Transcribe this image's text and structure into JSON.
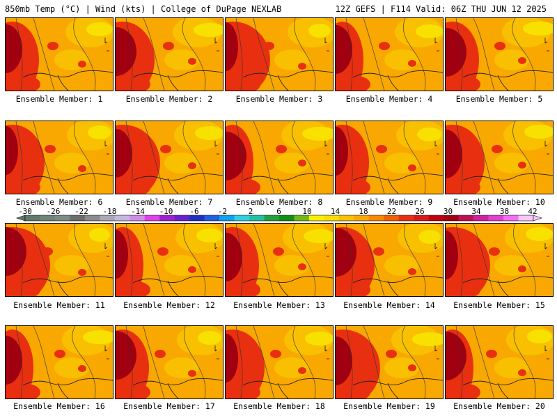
{
  "header": {
    "left": "850mb Temp (°C) | Wind (kts) | College of DuPage NEXLAB",
    "right": "12Z GEFS | F114 Valid: 06Z THU JUN 12 2025"
  },
  "panels": [
    {
      "label": "Ensemble Member: 1"
    },
    {
      "label": "Ensemble Member: 2"
    },
    {
      "label": "Ensemble Member: 3"
    },
    {
      "label": "Ensemble Member: 4"
    },
    {
      "label": "Ensemble Member: 5"
    },
    {
      "label": "Ensemble Member: 6"
    },
    {
      "label": "Ensemble Member: 7"
    },
    {
      "label": "Ensemble Member: 8"
    },
    {
      "label": "Ensemble Member: 9"
    },
    {
      "label": "Ensemble Member: 10"
    },
    {
      "label": "Ensemble Member: 11"
    },
    {
      "label": "Ensemble Member: 12"
    },
    {
      "label": "Ensemble Member: 13"
    },
    {
      "label": "Ensemble Member: 14"
    },
    {
      "label": "Ensemble Member: 15"
    },
    {
      "label": "Ensemble Member: 16"
    },
    {
      "label": "Ensemble Member: 17"
    },
    {
      "label": "Ensemble Member: 18"
    },
    {
      "label": "Ensemble Member: 19"
    },
    {
      "label": "Ensemble Member: 20"
    }
  ],
  "colorbar": {
    "labels": [
      "-30",
      "-26",
      "-22",
      "-18",
      "-14",
      "-10",
      "-6",
      "-2",
      "2",
      "6",
      "10",
      "14",
      "18",
      "22",
      "26",
      "30",
      "34",
      "38",
      "42"
    ],
    "colors": [
      "#5f7a6a",
      "#6e8478",
      "#7c8b82",
      "#6c6c6c",
      "#8a8a8a",
      "#a8a8b8",
      "#c4b6dc",
      "#d08ce8",
      "#e040e8",
      "#a020d0",
      "#6a20c8",
      "#2030c0",
      "#2060e0",
      "#10a0f0",
      "#30d0e0",
      "#20c0a0",
      "#20a040",
      "#109010",
      "#70b818",
      "#f8f000",
      "#f8e000",
      "#f8c000",
      "#f8a800",
      "#f88800",
      "#f06000",
      "#e83010",
      "#d81818",
      "#c00010",
      "#a00010",
      "#c01050",
      "#d020a0",
      "#e040d0",
      "#f070f0",
      "#f8c8f8"
    ]
  },
  "theme": {
    "warm_base": "#f8a800",
    "hot": "#e83010",
    "very_hot": "#a00010",
    "mild": "#f8c000",
    "cool": "#f8e000"
  }
}
